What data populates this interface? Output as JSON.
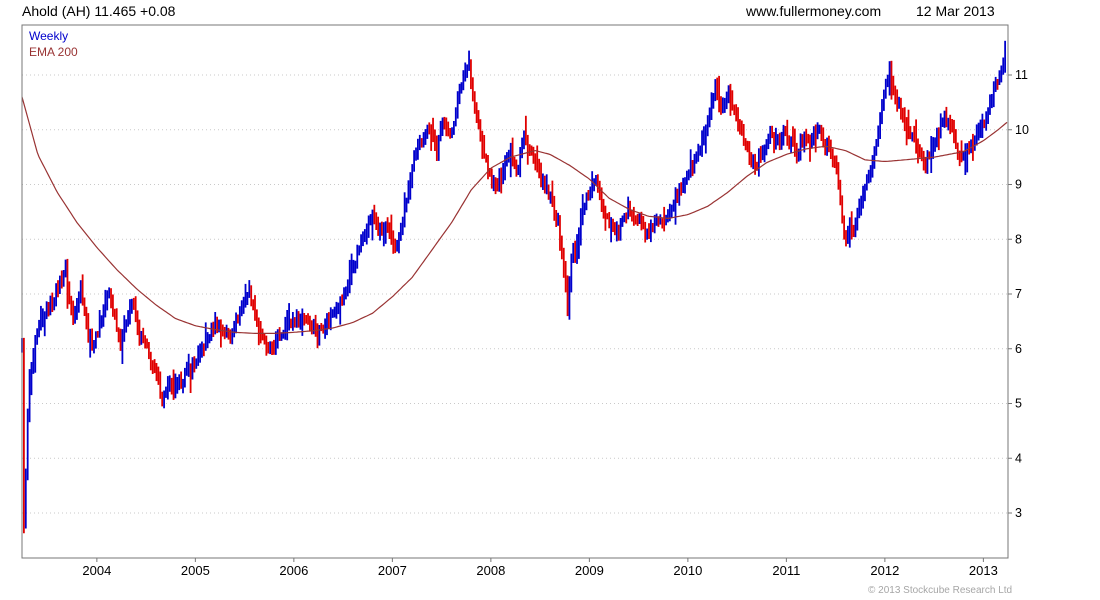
{
  "header": {
    "instrument_label": "Ahold (AH) 11.465 +0.08",
    "website": "www.fullermoney.com",
    "date": "12 Mar 2013"
  },
  "legend": {
    "series_label": "Weekly",
    "overlay_label": "EMA 200"
  },
  "footer": {
    "copyright": "© 2013 Stockcube Research Ltd"
  },
  "chart_data": {
    "type": "bar",
    "subtype": "weekly-ohlc-bars-with-ema",
    "title": "Ahold (AH) weekly bar chart with 200-week EMA",
    "instrument": "Ahold (AH)",
    "last_price": 11.465,
    "change": "+0.08",
    "legend": [
      "Weekly",
      "EMA 200"
    ],
    "x_axis": {
      "start": 2003.24,
      "end": 2013.25,
      "tick_years": [
        2004,
        2005,
        2006,
        2007,
        2008,
        2009,
        2010,
        2011,
        2012,
        2013
      ]
    },
    "y_axis": {
      "min": 2.2,
      "max": 11.9,
      "ticks": [
        3,
        4,
        5,
        6,
        7,
        8,
        9,
        10,
        11
      ],
      "grid": "dotted"
    },
    "colors": {
      "up": "#0000cc",
      "down": "#e00000",
      "ema": "#993333",
      "grid": "#c9c9c9",
      "axis": "#777777",
      "text": "#000000"
    },
    "price_close_anchors": [
      [
        2003.24,
        6.0
      ],
      [
        2003.26,
        2.7
      ],
      [
        2003.3,
        4.9
      ],
      [
        2003.34,
        5.7
      ],
      [
        2003.4,
        6.3
      ],
      [
        2003.46,
        6.6
      ],
      [
        2003.52,
        6.8
      ],
      [
        2003.58,
        7.0
      ],
      [
        2003.64,
        7.3
      ],
      [
        2003.68,
        7.45
      ],
      [
        2003.72,
        6.9
      ],
      [
        2003.76,
        6.5
      ],
      [
        2003.8,
        6.9
      ],
      [
        2003.84,
        7.2
      ],
      [
        2003.88,
        6.6
      ],
      [
        2003.92,
        6.2
      ],
      [
        2003.96,
        6.05
      ],
      [
        2004.0,
        6.25
      ],
      [
        2004.06,
        6.6
      ],
      [
        2004.12,
        7.05
      ],
      [
        2004.18,
        6.6
      ],
      [
        2004.24,
        6.1
      ],
      [
        2004.3,
        6.55
      ],
      [
        2004.36,
        6.9
      ],
      [
        2004.42,
        6.3
      ],
      [
        2004.48,
        6.15
      ],
      [
        2004.54,
        5.8
      ],
      [
        2004.6,
        5.5
      ],
      [
        2004.67,
        5.1
      ],
      [
        2004.73,
        5.35
      ],
      [
        2004.79,
        5.15
      ],
      [
        2004.86,
        5.45
      ],
      [
        2004.93,
        5.6
      ],
      [
        2005.0,
        5.75
      ],
      [
        2005.07,
        6.0
      ],
      [
        2005.14,
        6.25
      ],
      [
        2005.21,
        6.5
      ],
      [
        2005.28,
        6.35
      ],
      [
        2005.35,
        6.2
      ],
      [
        2005.42,
        6.55
      ],
      [
        2005.49,
        6.9
      ],
      [
        2005.55,
        7.05
      ],
      [
        2005.61,
        6.6
      ],
      [
        2005.67,
        6.2
      ],
      [
        2005.74,
        5.95
      ],
      [
        2005.81,
        6.1
      ],
      [
        2005.88,
        6.3
      ],
      [
        2005.95,
        6.45
      ],
      [
        2006.02,
        6.55
      ],
      [
        2006.1,
        6.6
      ],
      [
        2006.18,
        6.45
      ],
      [
        2006.26,
        6.35
      ],
      [
        2006.34,
        6.5
      ],
      [
        2006.42,
        6.75
      ],
      [
        2006.5,
        6.95
      ],
      [
        2006.58,
        7.35
      ],
      [
        2006.66,
        7.85
      ],
      [
        2006.74,
        8.2
      ],
      [
        2006.8,
        8.45
      ],
      [
        2006.87,
        8.1
      ],
      [
        2006.94,
        8.25
      ],
      [
        2007.02,
        7.8
      ],
      [
        2007.08,
        8.1
      ],
      [
        2007.15,
        8.8
      ],
      [
        2007.22,
        9.45
      ],
      [
        2007.3,
        9.8
      ],
      [
        2007.38,
        10.1
      ],
      [
        2007.45,
        9.6
      ],
      [
        2007.52,
        10.25
      ],
      [
        2007.59,
        9.85
      ],
      [
        2007.66,
        10.5
      ],
      [
        2007.73,
        11.0
      ],
      [
        2007.77,
        11.3
      ],
      [
        2007.82,
        10.5
      ],
      [
        2007.88,
        10.0
      ],
      [
        2007.94,
        9.5
      ],
      [
        2008.0,
        9.1
      ],
      [
        2008.06,
        8.9
      ],
      [
        2008.13,
        9.35
      ],
      [
        2008.2,
        9.65
      ],
      [
        2008.27,
        9.2
      ],
      [
        2008.33,
        9.9
      ],
      [
        2008.4,
        9.6
      ],
      [
        2008.47,
        9.3
      ],
      [
        2008.54,
        8.95
      ],
      [
        2008.61,
        8.75
      ],
      [
        2008.68,
        8.3
      ],
      [
        2008.73,
        7.6
      ],
      [
        2008.78,
        6.7
      ],
      [
        2008.83,
        7.9
      ],
      [
        2008.86,
        7.6
      ],
      [
        2008.92,
        8.5
      ],
      [
        2009.0,
        8.85
      ],
      [
        2009.07,
        9.1
      ],
      [
        2009.14,
        8.55
      ],
      [
        2009.21,
        8.3
      ],
      [
        2009.28,
        8.1
      ],
      [
        2009.35,
        8.35
      ],
      [
        2009.42,
        8.55
      ],
      [
        2009.49,
        8.35
      ],
      [
        2009.56,
        8.2
      ],
      [
        2009.6,
        8.0
      ],
      [
        2009.66,
        8.35
      ],
      [
        2009.73,
        8.25
      ],
      [
        2009.8,
        8.5
      ],
      [
        2009.87,
        8.7
      ],
      [
        2009.94,
        8.95
      ],
      [
        2010.01,
        9.25
      ],
      [
        2010.08,
        9.45
      ],
      [
        2010.15,
        9.8
      ],
      [
        2010.22,
        10.3
      ],
      [
        2010.28,
        10.75
      ],
      [
        2010.34,
        10.3
      ],
      [
        2010.41,
        10.65
      ],
      [
        2010.48,
        10.3
      ],
      [
        2010.55,
        9.9
      ],
      [
        2010.62,
        9.55
      ],
      [
        2010.69,
        9.35
      ],
      [
        2010.76,
        9.6
      ],
      [
        2010.83,
        9.9
      ],
      [
        2010.9,
        9.7
      ],
      [
        2010.97,
        9.9
      ],
      [
        2011.04,
        9.75
      ],
      [
        2011.11,
        9.55
      ],
      [
        2011.18,
        9.9
      ],
      [
        2011.25,
        9.8
      ],
      [
        2011.32,
        10.0
      ],
      [
        2011.39,
        9.75
      ],
      [
        2011.46,
        9.55
      ],
      [
        2011.52,
        9.25
      ],
      [
        2011.56,
        8.4
      ],
      [
        2011.6,
        7.9
      ],
      [
        2011.64,
        8.35
      ],
      [
        2011.68,
        8.05
      ],
      [
        2011.73,
        8.5
      ],
      [
        2011.8,
        8.95
      ],
      [
        2011.87,
        9.35
      ],
      [
        2011.94,
        10.1
      ],
      [
        2012.01,
        10.8
      ],
      [
        2012.05,
        11.0
      ],
      [
        2012.11,
        10.55
      ],
      [
        2012.18,
        10.25
      ],
      [
        2012.25,
        10.0
      ],
      [
        2012.32,
        9.7
      ],
      [
        2012.4,
        9.35
      ],
      [
        2012.47,
        9.7
      ],
      [
        2012.54,
        10.0
      ],
      [
        2012.61,
        10.2
      ],
      [
        2012.68,
        10.05
      ],
      [
        2012.74,
        9.55
      ],
      [
        2012.81,
        9.5
      ],
      [
        2012.88,
        9.75
      ],
      [
        2012.95,
        10.0
      ],
      [
        2013.02,
        10.25
      ],
      [
        2013.09,
        10.6
      ],
      [
        2013.15,
        10.95
      ],
      [
        2013.19,
        11.1
      ],
      [
        2013.22,
        11.465
      ]
    ],
    "ema200_anchors": [
      [
        2003.24,
        10.6
      ],
      [
        2003.4,
        9.55
      ],
      [
        2003.6,
        8.85
      ],
      [
        2003.8,
        8.3
      ],
      [
        2004.0,
        7.85
      ],
      [
        2004.2,
        7.45
      ],
      [
        2004.4,
        7.1
      ],
      [
        2004.6,
        6.8
      ],
      [
        2004.8,
        6.55
      ],
      [
        2005.0,
        6.42
      ],
      [
        2005.2,
        6.35
      ],
      [
        2005.4,
        6.3
      ],
      [
        2005.6,
        6.28
      ],
      [
        2005.8,
        6.28
      ],
      [
        2006.0,
        6.3
      ],
      [
        2006.2,
        6.33
      ],
      [
        2006.4,
        6.38
      ],
      [
        2006.6,
        6.48
      ],
      [
        2006.8,
        6.65
      ],
      [
        2007.0,
        6.95
      ],
      [
        2007.2,
        7.3
      ],
      [
        2007.4,
        7.8
      ],
      [
        2007.6,
        8.3
      ],
      [
        2007.8,
        8.9
      ],
      [
        2008.0,
        9.3
      ],
      [
        2008.2,
        9.5
      ],
      [
        2008.45,
        9.62
      ],
      [
        2008.6,
        9.55
      ],
      [
        2008.8,
        9.35
      ],
      [
        2009.0,
        9.1
      ],
      [
        2009.2,
        8.75
      ],
      [
        2009.4,
        8.55
      ],
      [
        2009.6,
        8.42
      ],
      [
        2009.8,
        8.38
      ],
      [
        2010.0,
        8.45
      ],
      [
        2010.2,
        8.6
      ],
      [
        2010.4,
        8.85
      ],
      [
        2010.6,
        9.15
      ],
      [
        2010.8,
        9.4
      ],
      [
        2011.0,
        9.55
      ],
      [
        2011.2,
        9.65
      ],
      [
        2011.4,
        9.7
      ],
      [
        2011.6,
        9.62
      ],
      [
        2011.8,
        9.45
      ],
      [
        2012.0,
        9.42
      ],
      [
        2012.2,
        9.45
      ],
      [
        2012.5,
        9.5
      ],
      [
        2012.8,
        9.6
      ],
      [
        2013.0,
        9.8
      ],
      [
        2013.15,
        10.0
      ],
      [
        2013.25,
        10.15
      ]
    ]
  }
}
